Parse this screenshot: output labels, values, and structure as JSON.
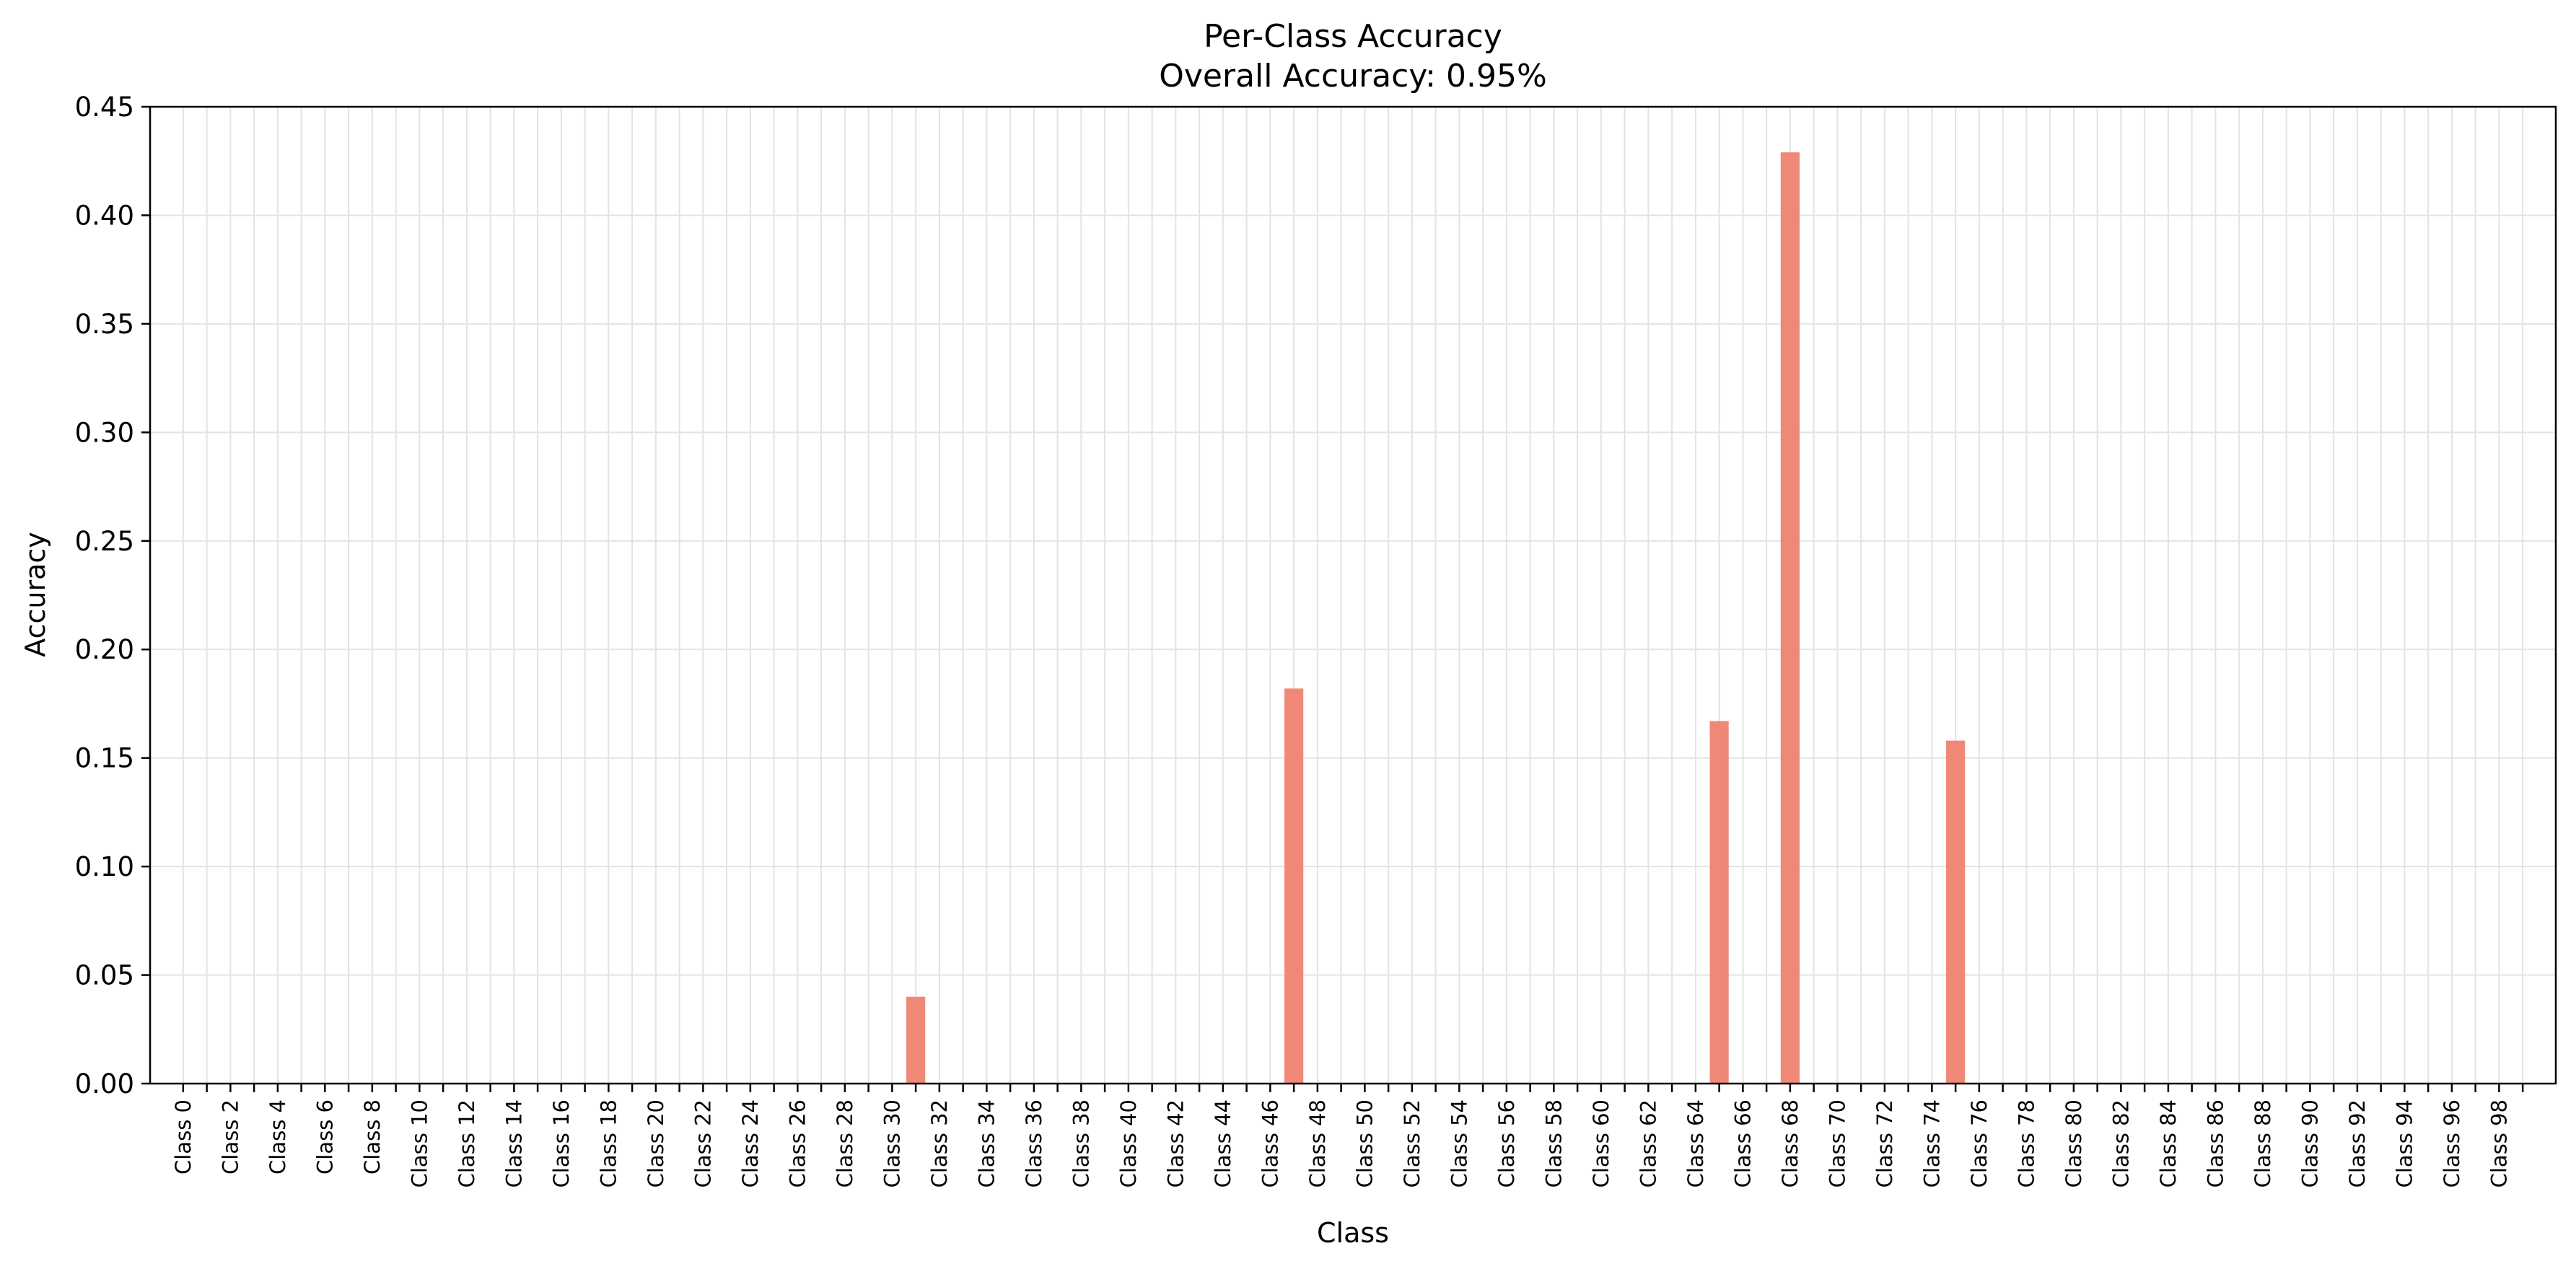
{
  "chart_data": {
    "type": "bar",
    "title": "Per-Class Accuracy",
    "subtitle": "Overall Accuracy: 0.95%",
    "xlabel": "Class",
    "ylabel": "Accuracy",
    "ylim": [
      0,
      0.45
    ],
    "yticks": [
      "0.00",
      "0.05",
      "0.10",
      "0.15",
      "0.20",
      "0.25",
      "0.30",
      "0.35",
      "0.40",
      "0.45"
    ],
    "grid": true,
    "bar_color": "#f08878",
    "categories": [
      "Class 0",
      "Class 1",
      "Class 2",
      "Class 3",
      "Class 4",
      "Class 5",
      "Class 6",
      "Class 7",
      "Class 8",
      "Class 9",
      "Class 10",
      "Class 11",
      "Class 12",
      "Class 13",
      "Class 14",
      "Class 15",
      "Class 16",
      "Class 17",
      "Class 18",
      "Class 19",
      "Class 20",
      "Class 21",
      "Class 22",
      "Class 23",
      "Class 24",
      "Class 25",
      "Class 26",
      "Class 27",
      "Class 28",
      "Class 29",
      "Class 30",
      "Class 31",
      "Class 32",
      "Class 33",
      "Class 34",
      "Class 35",
      "Class 36",
      "Class 37",
      "Class 38",
      "Class 39",
      "Class 40",
      "Class 41",
      "Class 42",
      "Class 43",
      "Class 44",
      "Class 45",
      "Class 46",
      "Class 47",
      "Class 48",
      "Class 49",
      "Class 50",
      "Class 51",
      "Class 52",
      "Class 53",
      "Class 54",
      "Class 55",
      "Class 56",
      "Class 57",
      "Class 58",
      "Class 59",
      "Class 60",
      "Class 61",
      "Class 62",
      "Class 63",
      "Class 64",
      "Class 65",
      "Class 66",
      "Class 67",
      "Class 68",
      "Class 69",
      "Class 70",
      "Class 71",
      "Class 72",
      "Class 73",
      "Class 74",
      "Class 75",
      "Class 76",
      "Class 77",
      "Class 78",
      "Class 79",
      "Class 80",
      "Class 81",
      "Class 82",
      "Class 83",
      "Class 84",
      "Class 85",
      "Class 86",
      "Class 87",
      "Class 88",
      "Class 89",
      "Class 90",
      "Class 91",
      "Class 92",
      "Class 93",
      "Class 94",
      "Class 95",
      "Class 96",
      "Class 97",
      "Class 98",
      "Class 99"
    ],
    "xtick_labels": [
      "Class 0",
      "Class 2",
      "Class 4",
      "Class 6",
      "Class 8",
      "Class 10",
      "Class 12",
      "Class 14",
      "Class 16",
      "Class 18",
      "Class 20",
      "Class 22",
      "Class 24",
      "Class 26",
      "Class 28",
      "Class 30",
      "Class 32",
      "Class 34",
      "Class 36",
      "Class 38",
      "Class 40",
      "Class 42",
      "Class 44",
      "Class 46",
      "Class 48",
      "Class 50",
      "Class 52",
      "Class 54",
      "Class 56",
      "Class 58",
      "Class 60",
      "Class 62",
      "Class 64",
      "Class 66",
      "Class 68",
      "Class 70",
      "Class 72",
      "Class 74",
      "Class 76",
      "Class 78",
      "Class 80",
      "Class 82",
      "Class 84",
      "Class 86",
      "Class 88",
      "Class 90",
      "Class 92",
      "Class 94",
      "Class 96",
      "Class 98"
    ],
    "values": [
      0,
      0,
      0,
      0,
      0,
      0,
      0,
      0,
      0,
      0,
      0,
      0,
      0,
      0,
      0,
      0,
      0,
      0,
      0,
      0,
      0,
      0,
      0,
      0,
      0,
      0,
      0,
      0,
      0,
      0,
      0,
      0.04,
      0,
      0,
      0,
      0,
      0,
      0,
      0,
      0,
      0,
      0,
      0,
      0,
      0,
      0,
      0,
      0.182,
      0,
      0,
      0,
      0,
      0,
      0,
      0,
      0,
      0,
      0,
      0,
      0,
      0,
      0,
      0,
      0,
      0,
      0.167,
      0,
      0,
      0.429,
      0,
      0,
      0,
      0,
      0,
      0,
      0.158,
      0,
      0,
      0,
      0,
      0,
      0,
      0,
      0,
      0,
      0,
      0,
      0,
      0,
      0,
      0,
      0,
      0,
      0,
      0,
      0,
      0,
      0,
      0,
      0
    ]
  }
}
